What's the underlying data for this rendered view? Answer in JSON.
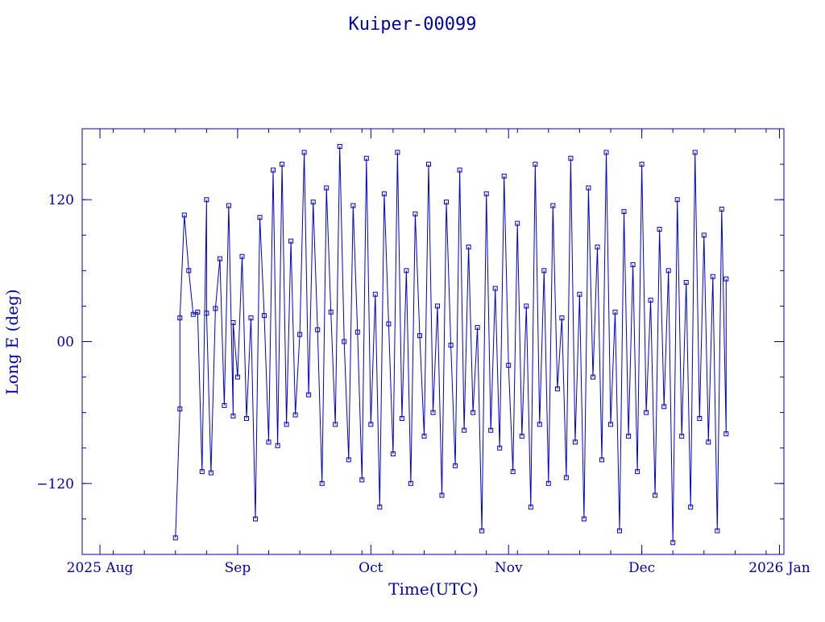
{
  "chart_data": {
    "type": "line",
    "title": "Kuiper-00099",
    "xlabel": "Time(UTC)",
    "ylabel": "Long E (deg)",
    "x_axis": {
      "type": "date",
      "range": [
        "2025-07-28",
        "2026-01-02"
      ],
      "ticks": [
        {
          "date": "2025-08-01",
          "label": "2025 Aug"
        },
        {
          "date": "2025-09-01",
          "label": "Sep"
        },
        {
          "date": "2025-10-01",
          "label": "Oct"
        },
        {
          "date": "2025-11-01",
          "label": "Nov"
        },
        {
          "date": "2025-12-01",
          "label": "Dec"
        },
        {
          "date": "2026-01-01",
          "label": "2026 Jan"
        }
      ]
    },
    "y_axis": {
      "range": [
        -180,
        180
      ],
      "ticks": [
        {
          "value": -120,
          "label": "−120"
        },
        {
          "value": 0,
          "label": "00"
        },
        {
          "value": 120,
          "label": "120"
        }
      ],
      "minor_step": 30
    },
    "grid": false,
    "legend": "none",
    "series": [
      {
        "color": "#0000cc",
        "marker": "square",
        "points": [
          [
            "2025-08-18",
            -166
          ],
          [
            "2025-08-19",
            -57
          ],
          [
            "2025-08-19",
            20
          ],
          [
            "2025-08-20",
            107
          ],
          [
            "2025-08-21",
            60
          ],
          [
            "2025-08-22",
            23
          ],
          [
            "2025-08-23",
            25
          ],
          [
            "2025-08-24",
            -110
          ],
          [
            "2025-08-25",
            120
          ],
          [
            "2025-08-25",
            24
          ],
          [
            "2025-08-26",
            -111
          ],
          [
            "2025-08-27",
            28
          ],
          [
            "2025-08-28",
            70
          ],
          [
            "2025-08-29",
            -54
          ],
          [
            "2025-08-30",
            115
          ],
          [
            "2025-08-31",
            -63
          ],
          [
            "2025-08-31",
            16
          ],
          [
            "2025-09-01",
            -30
          ],
          [
            "2025-09-02",
            72
          ],
          [
            "2025-09-03",
            -65
          ],
          [
            "2025-09-04",
            20
          ],
          [
            "2025-09-05",
            -150
          ],
          [
            "2025-09-06",
            105
          ],
          [
            "2025-09-07",
            22
          ],
          [
            "2025-09-08",
            -85
          ],
          [
            "2025-09-09",
            145
          ],
          [
            "2025-09-10",
            -88
          ],
          [
            "2025-09-11",
            150
          ],
          [
            "2025-09-12",
            -70
          ],
          [
            "2025-09-13",
            85
          ],
          [
            "2025-09-14",
            -62
          ],
          [
            "2025-09-15",
            6
          ],
          [
            "2025-09-16",
            160
          ],
          [
            "2025-09-17",
            -45
          ],
          [
            "2025-09-18",
            118
          ],
          [
            "2025-09-19",
            10
          ],
          [
            "2025-09-20",
            -120
          ],
          [
            "2025-09-21",
            130
          ],
          [
            "2025-09-22",
            25
          ],
          [
            "2025-09-23",
            -70
          ],
          [
            "2025-09-24",
            165
          ],
          [
            "2025-09-25",
            0
          ],
          [
            "2025-09-26",
            -100
          ],
          [
            "2025-09-27",
            115
          ],
          [
            "2025-09-28",
            8
          ],
          [
            "2025-09-29",
            -117
          ],
          [
            "2025-09-30",
            155
          ],
          [
            "2025-10-01",
            -70
          ],
          [
            "2025-10-02",
            40
          ],
          [
            "2025-10-03",
            -140
          ],
          [
            "2025-10-04",
            125
          ],
          [
            "2025-10-05",
            15
          ],
          [
            "2025-10-06",
            -95
          ],
          [
            "2025-10-07",
            160
          ],
          [
            "2025-10-08",
            -65
          ],
          [
            "2025-10-09",
            60
          ],
          [
            "2025-10-10",
            -120
          ],
          [
            "2025-10-11",
            108
          ],
          [
            "2025-10-12",
            5
          ],
          [
            "2025-10-13",
            -80
          ],
          [
            "2025-10-14",
            150
          ],
          [
            "2025-10-15",
            -60
          ],
          [
            "2025-10-16",
            30
          ],
          [
            "2025-10-17",
            -130
          ],
          [
            "2025-10-18",
            118
          ],
          [
            "2025-10-19",
            -3
          ],
          [
            "2025-10-20",
            -105
          ],
          [
            "2025-10-21",
            145
          ],
          [
            "2025-10-22",
            -75
          ],
          [
            "2025-10-23",
            80
          ],
          [
            "2025-10-24",
            -60
          ],
          [
            "2025-10-25",
            12
          ],
          [
            "2025-10-26",
            -160
          ],
          [
            "2025-10-27",
            125
          ],
          [
            "2025-10-28",
            -75
          ],
          [
            "2025-10-29",
            45
          ],
          [
            "2025-10-30",
            -90
          ],
          [
            "2025-10-31",
            140
          ],
          [
            "2025-11-01",
            -20
          ],
          [
            "2025-11-02",
            -110
          ],
          [
            "2025-11-03",
            100
          ],
          [
            "2025-11-04",
            -80
          ],
          [
            "2025-11-05",
            30
          ],
          [
            "2025-11-06",
            -140
          ],
          [
            "2025-11-07",
            150
          ],
          [
            "2025-11-08",
            -70
          ],
          [
            "2025-11-09",
            60
          ],
          [
            "2025-11-10",
            -120
          ],
          [
            "2025-11-11",
            115
          ],
          [
            "2025-11-12",
            -40
          ],
          [
            "2025-11-13",
            20
          ],
          [
            "2025-11-14",
            -115
          ],
          [
            "2025-11-15",
            155
          ],
          [
            "2025-11-16",
            -85
          ],
          [
            "2025-11-17",
            40
          ],
          [
            "2025-11-18",
            -150
          ],
          [
            "2025-11-19",
            130
          ],
          [
            "2025-11-20",
            -30
          ],
          [
            "2025-11-21",
            80
          ],
          [
            "2025-11-22",
            -100
          ],
          [
            "2025-11-23",
            160
          ],
          [
            "2025-11-24",
            -70
          ],
          [
            "2025-11-25",
            25
          ],
          [
            "2025-11-26",
            -160
          ],
          [
            "2025-11-27",
            110
          ],
          [
            "2025-11-28",
            -80
          ],
          [
            "2025-11-29",
            65
          ],
          [
            "2025-11-30",
            -110
          ],
          [
            "2025-12-01",
            150
          ],
          [
            "2025-12-02",
            -60
          ],
          [
            "2025-12-03",
            35
          ],
          [
            "2025-12-04",
            -130
          ],
          [
            "2025-12-05",
            95
          ],
          [
            "2025-12-06",
            -55
          ],
          [
            "2025-12-07",
            60
          ],
          [
            "2025-12-08",
            -170
          ],
          [
            "2025-12-09",
            120
          ],
          [
            "2025-12-10",
            -80
          ],
          [
            "2025-12-11",
            50
          ],
          [
            "2025-12-12",
            -140
          ],
          [
            "2025-12-13",
            160
          ],
          [
            "2025-12-14",
            -65
          ],
          [
            "2025-12-15",
            90
          ],
          [
            "2025-12-16",
            -85
          ],
          [
            "2025-12-17",
            55
          ],
          [
            "2025-12-18",
            -160
          ],
          [
            "2025-12-19",
            112
          ],
          [
            "2025-12-20",
            -78
          ],
          [
            "2025-12-20",
            53
          ]
        ]
      }
    ]
  }
}
